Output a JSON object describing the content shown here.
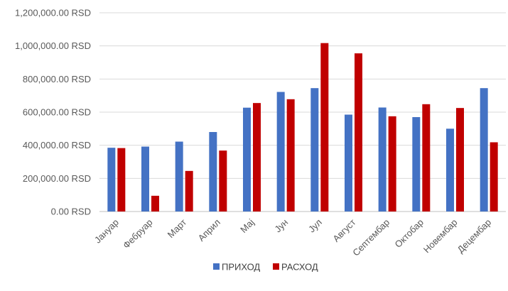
{
  "chart_data": {
    "type": "bar",
    "categories": [
      "Јануар",
      "Фебруар",
      "Март",
      "Април",
      "Мај",
      "Јун",
      "Јул",
      "Август",
      "Септембар",
      "Октобар",
      "Новембар",
      "Децембар"
    ],
    "series": [
      {
        "name": "ПРИХОД",
        "color": "#4472C4",
        "values": [
          385000,
          392000,
          422000,
          480000,
          627000,
          722000,
          745000,
          585000,
          628000,
          570000,
          500000,
          745000
        ]
      },
      {
        "name": "РАСХОД",
        "color": "#C00000",
        "values": [
          383000,
          95000,
          245000,
          368000,
          655000,
          678000,
          1017000,
          955000,
          575000,
          648000,
          625000,
          418000
        ]
      }
    ],
    "y_ticks": [
      "0.00 RSD",
      "200,000.00 RSD",
      "400,000.00 RSD",
      "600,000.00 RSD",
      "800,000.00 RSD",
      "1,000,000.00 RSD",
      "1,200,000.00 RSD"
    ],
    "ylim": [
      0,
      1200000
    ],
    "grid": true,
    "legend_position": "bottom",
    "title": "",
    "xlabel": "",
    "ylabel": ""
  }
}
